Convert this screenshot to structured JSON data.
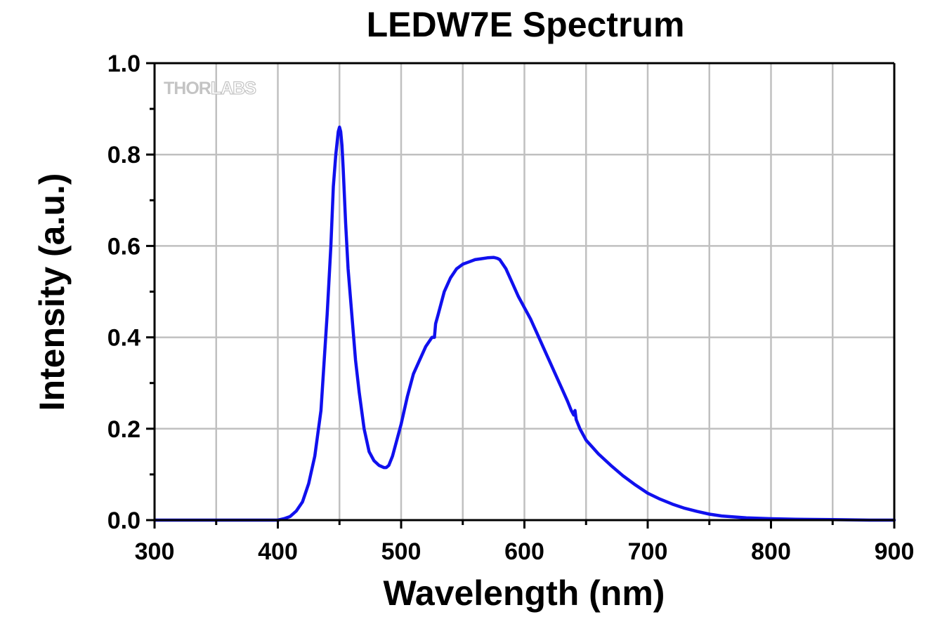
{
  "chart_data": {
    "type": "line",
    "title": "LEDW7E Spectrum",
    "xlabel": "Wavelength (nm)",
    "ylabel": "Intensity (a.u.)",
    "xlim": [
      300,
      900
    ],
    "ylim": [
      0,
      1.0
    ],
    "xticks": [
      "300",
      "400",
      "500",
      "600",
      "700",
      "800",
      "900"
    ],
    "yticks": [
      "0.0",
      "0.2",
      "0.4",
      "0.6",
      "0.8",
      "1.0"
    ],
    "grid": true,
    "logo": {
      "part1": "THOR",
      "part2": "LABS"
    },
    "colors": {
      "line": "#1010ee",
      "grid": "#c0c0c0",
      "axis": "#000000",
      "logo": "#c4c4c4"
    },
    "series": [
      {
        "x": [
          300,
          320,
          340,
          360,
          380,
          400,
          405,
          410,
          415,
          420,
          425,
          430,
          435,
          440,
          443,
          445,
          447,
          449,
          450,
          451,
          452,
          453,
          455,
          457,
          460,
          463,
          466,
          470,
          474,
          478,
          482,
          486,
          488,
          490,
          493,
          496,
          500,
          505,
          510,
          515,
          520,
          525,
          526,
          527,
          528,
          530,
          535,
          540,
          545,
          550,
          555,
          560,
          565,
          570,
          575,
          578,
          580,
          585,
          590,
          595,
          600,
          605,
          610,
          615,
          620,
          625,
          630,
          635,
          638,
          640,
          641,
          642,
          645,
          650,
          655,
          660,
          670,
          680,
          690,
          700,
          710,
          720,
          730,
          740,
          750,
          760,
          780,
          800,
          820,
          850,
          880,
          900
        ],
        "y": [
          0.0,
          0.0,
          0.0,
          0.0,
          0.0,
          0.0,
          0.003,
          0.008,
          0.02,
          0.04,
          0.08,
          0.14,
          0.24,
          0.45,
          0.6,
          0.73,
          0.8,
          0.85,
          0.86,
          0.85,
          0.82,
          0.77,
          0.65,
          0.55,
          0.45,
          0.35,
          0.28,
          0.2,
          0.15,
          0.13,
          0.12,
          0.115,
          0.115,
          0.12,
          0.14,
          0.17,
          0.21,
          0.27,
          0.32,
          0.35,
          0.38,
          0.4,
          0.4,
          0.4,
          0.43,
          0.45,
          0.5,
          0.53,
          0.55,
          0.56,
          0.565,
          0.57,
          0.572,
          0.574,
          0.575,
          0.573,
          0.57,
          0.55,
          0.52,
          0.49,
          0.465,
          0.44,
          0.41,
          0.38,
          0.35,
          0.32,
          0.29,
          0.26,
          0.24,
          0.23,
          0.24,
          0.22,
          0.2,
          0.175,
          0.16,
          0.145,
          0.12,
          0.097,
          0.077,
          0.059,
          0.046,
          0.035,
          0.026,
          0.019,
          0.013,
          0.009,
          0.005,
          0.003,
          0.002,
          0.001,
          0.0,
          0.0
        ]
      }
    ]
  }
}
